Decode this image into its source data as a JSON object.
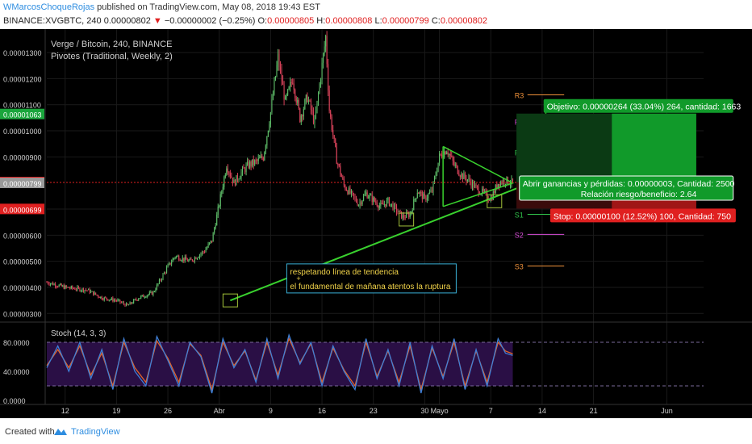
{
  "header": {
    "author": "WMarcosChoqueRojas",
    "published": "published on TradingView.com, May 08, 2018 19:43 EST",
    "symbol": "BINANCE:XVGBTC, 240",
    "last": "0.00000802",
    "change": "−0.00000002 (−0.25%)",
    "o_label": "O:",
    "o_value": "0.00000805",
    "h_label": "H:",
    "h_value": "0.00000808",
    "l_label": "L:",
    "l_value": "0.00000799",
    "c_label": "C:",
    "c_value": "0.00000802"
  },
  "footer": {
    "created": "Created with",
    "brand": "TradingView"
  },
  "colors": {
    "background": "#000000",
    "up": "#5fbf6a",
    "down": "#d9435a",
    "trend": "#39d12e",
    "stoch_k": "#3f7fd6",
    "stoch_d": "#e0632b",
    "stoch_bg": "#2a0f45"
  },
  "chart_data": {
    "type": "candlestick",
    "title": "Verge / Bitcoin, 240, BINANCE",
    "indicator": "Pivotes (Traditional, Weekly, 2)",
    "ylim": [
      2.7e-06,
      1.39e-05
    ],
    "y_ticks": [
      "0.00001300",
      "0.00001200",
      "0.00001100",
      "0.00001000",
      "0.00000900",
      "0.00000700",
      "0.00000600",
      "0.00000500",
      "0.00000400",
      "0.00000300"
    ],
    "y_tick_values": [
      1.3e-05,
      1.2e-05,
      1.1e-05,
      1e-05,
      9e-06,
      7e-06,
      6e-06,
      5e-06,
      4e-06,
      3e-06
    ],
    "price_tags": [
      {
        "label": "0.00001063",
        "value": 1.063e-05,
        "color": "#1aa53c"
      },
      {
        "label": "0.00000802",
        "value": 8.02e-06,
        "color": "#e02020"
      },
      {
        "label": "0.00000799",
        "value": 7.99e-06,
        "color": "#9a9a9a"
      },
      {
        "label": "0.00000699",
        "value": 6.99e-06,
        "color": "#e02020"
      }
    ],
    "x_ticks": [
      "12",
      "19",
      "26",
      "Abr",
      "9",
      "16",
      "23",
      "30",
      "Mayo",
      "7",
      "14",
      "21",
      "Jun"
    ],
    "x_tick_days": [
      0,
      7,
      14,
      21,
      28,
      35,
      42,
      49,
      51,
      58,
      65,
      72,
      82
    ],
    "x_range_days": [
      -2.5,
      87
    ],
    "last_bar_day": 61,
    "close_series_days": [
      -2.5,
      0,
      3,
      5,
      7,
      8.5,
      10,
      12,
      14,
      15,
      17,
      19,
      20,
      21,
      22,
      23,
      24,
      25,
      26,
      27,
      28,
      29,
      30,
      31,
      32,
      33,
      34,
      35,
      35.5,
      36,
      37,
      38,
      40,
      41,
      43,
      44,
      45,
      46,
      47,
      48,
      49,
      50,
      51,
      52,
      53,
      54,
      55,
      56,
      57,
      58,
      59,
      60,
      61
    ],
    "close_series": [
      4.2e-06,
      4e-06,
      3.9e-06,
      3.6e-06,
      3.5e-06,
      3.3e-06,
      3.6e-06,
      3.8e-06,
      4.8e-06,
      5.2e-06,
      5e-06,
      5.4e-06,
      5.8e-06,
      7.2e-06,
      8.7e-06,
      8e-06,
      8.4e-06,
      8.7e-06,
      8.8e-06,
      9e-06,
      1.07e-05,
      1.28e-05,
      1.11e-05,
      1.2e-05,
      1.05e-05,
      1.13e-05,
      1.03e-05,
      1.25e-05,
      1.36e-05,
      1.08e-05,
      8.9e-06,
      7.9e-06,
      7.2e-06,
      7.6e-06,
      7.1e-06,
      7.3e-06,
      7e-06,
      6.7e-06,
      6.8e-06,
      7.7e-06,
      7.4e-06,
      7.7e-06,
      9e-06,
      9.3e-06,
      8.7e-06,
      8.3e-06,
      8.1e-06,
      7.8e-06,
      7.6e-06,
      7.4e-06,
      8e-06,
      8.1e-06,
      8e-06
    ],
    "trendline": {
      "from": [
        22.5,
        3.5e-06
      ],
      "to": [
        61.5,
        8e-06
      ]
    },
    "pivots": [
      {
        "label": "R3",
        "value": 1.138e-05,
        "color": "#f0913a"
      },
      {
        "label": "R2",
        "value": 1.036e-05,
        "color": "#d94dd9"
      },
      {
        "label": "R1",
        "value": 9.18e-06,
        "color": "#30c24a"
      },
      {
        "label": "S1",
        "value": 6.8e-06,
        "color": "#30c24a"
      },
      {
        "label": "S2",
        "value": 6.03e-06,
        "color": "#d94dd9"
      },
      {
        "label": "S3",
        "value": 4.82e-06,
        "color": "#f0913a"
      }
    ],
    "position": {
      "target": "Objetivo: 0.00000264 (33.04%) 264, cantidad: 1663",
      "open": "Abrir ganancias y pérdidas: 0.00000003, Cantidad: 2500",
      "ratio": "Relación riesgo/beneficio: 2.64",
      "stop": "Stop: 0.00000100 (12.52%) 100, Cantidad: 750",
      "entry": 8.02e-06,
      "target_value": 1.066e-05,
      "stop_value": 7.02e-06
    },
    "annotation_lines": [
      "respetando línea de tendencia",
      "+",
      "el fundamental de mañana atentos la ruptura"
    ],
    "stoch": {
      "label": "Stoch (14, 3, 3)",
      "ylim": [
        0,
        100
      ],
      "y_ticks": [
        "80.0000",
        "40.0000",
        "0.0000"
      ],
      "y_tick_values": [
        80,
        40,
        0
      ],
      "bands": [
        80,
        20
      ],
      "days": [
        -2.5,
        -1,
        0.5,
        2,
        3.5,
        5,
        6.5,
        8,
        9.5,
        11,
        12.5,
        14,
        15.5,
        17,
        18.5,
        20,
        21.5,
        23,
        24.5,
        26,
        27.5,
        29,
        30.5,
        32,
        33.5,
        35,
        36.5,
        38,
        39.5,
        41,
        42.5,
        44,
        45.5,
        47,
        48.5,
        50,
        51.5,
        53,
        54.5,
        56,
        57.5,
        59,
        60,
        61
      ],
      "k": [
        45,
        75,
        40,
        80,
        30,
        70,
        15,
        85,
        40,
        20,
        88,
        55,
        20,
        80,
        60,
        10,
        85,
        45,
        70,
        25,
        85,
        30,
        90,
        50,
        80,
        20,
        75,
        40,
        15,
        85,
        30,
        70,
        20,
        80,
        10,
        75,
        30,
        85,
        15,
        70,
        20,
        85,
        65,
        62
      ],
      "d": [
        48,
        70,
        45,
        75,
        35,
        65,
        20,
        80,
        45,
        25,
        82,
        58,
        25,
        78,
        62,
        15,
        80,
        48,
        68,
        28,
        80,
        35,
        85,
        52,
        78,
        25,
        72,
        42,
        20,
        80,
        33,
        68,
        25,
        75,
        15,
        72,
        33,
        80,
        20,
        68,
        25,
        80,
        68,
        64
      ]
    }
  }
}
